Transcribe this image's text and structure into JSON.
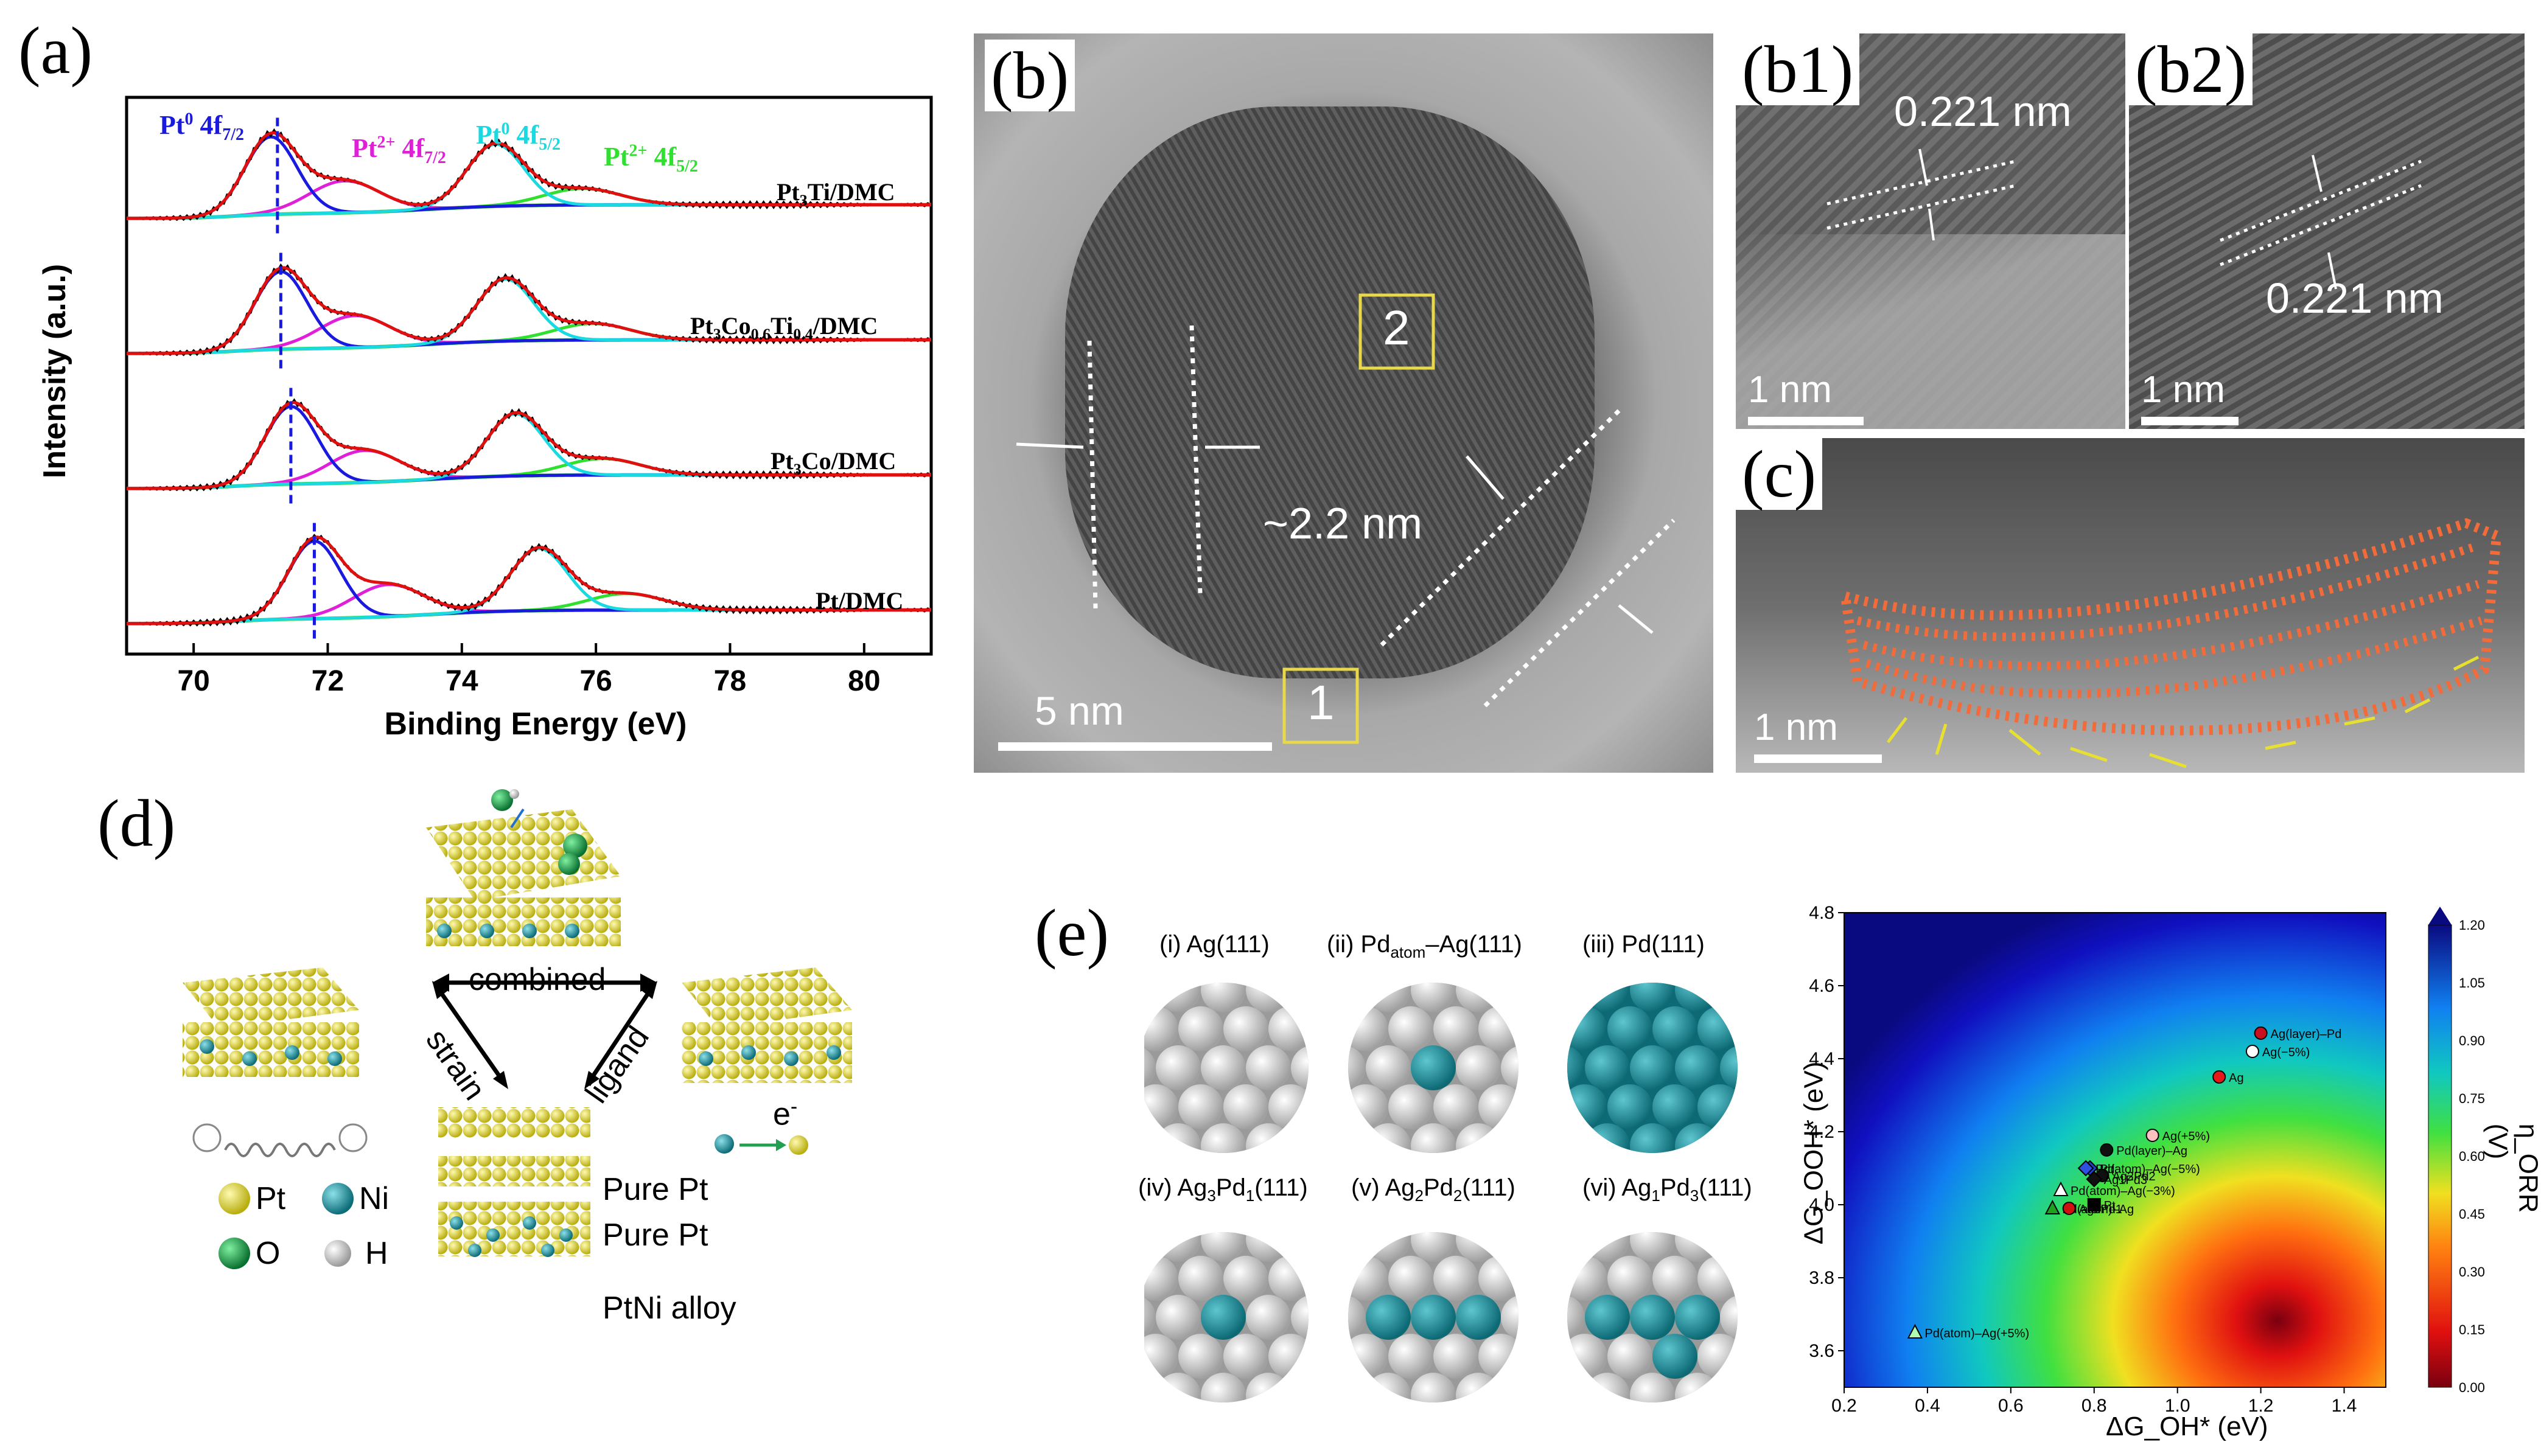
{
  "panel_labels": {
    "a": "(a)",
    "b": "(b)",
    "b1": "(b1)",
    "b2": "(b2)",
    "c": "(c)",
    "d": "(d)",
    "e": "(e)"
  },
  "panel_a": {
    "chart_data": {
      "type": "line",
      "title": "",
      "xlabel": "Binding Energy (eV)",
      "ylabel": "Intensity (a.u.)",
      "xlim": [
        69,
        81
      ],
      "x_ticks": [
        "70",
        "72",
        "74",
        "76",
        "78",
        "80"
      ],
      "x_reversed": false,
      "series": [
        {
          "name": "Pt3Ti/DMC",
          "baseline": 3,
          "peak_Pt0_72": 71.15,
          "peak_Pt0_52": 74.5,
          "dashed_line_x": 71.25
        },
        {
          "name": "Pt3Co0.6Ti0.4/DMC",
          "baseline": 2,
          "peak_Pt0_72": 71.3,
          "peak_Pt0_52": 74.65,
          "dashed_line_x": 71.3
        },
        {
          "name": "Pt3Co/DMC",
          "baseline": 1,
          "peak_Pt0_72": 71.45,
          "peak_Pt0_52": 74.8,
          "dashed_line_x": 71.45
        },
        {
          "name": "Pt/DMC",
          "baseline": 0,
          "peak_Pt0_72": 71.8,
          "peak_Pt0_52": 75.15,
          "dashed_line_x": 71.8
        }
      ],
      "peak_labels": [
        {
          "base": "Pt",
          "sup": "0",
          "rest": " 4f",
          "sub": "7/2",
          "color": "#1a1adf"
        },
        {
          "base": "Pt",
          "sup": "2+",
          "rest": " 4f",
          "sub": "7/2",
          "color": "#e020d8"
        },
        {
          "base": "Pt",
          "sup": "0",
          "rest": " 4f",
          "sub": "5/2",
          "color": "#1ad9e0"
        },
        {
          "base": "Pt",
          "sup": "2+",
          "rest": " 4f",
          "sub": "5/2",
          "color": "#30e030"
        }
      ],
      "series_labels": {
        "s1": {
          "a": "Pt",
          "b": "3",
          "c": "Ti/DMC"
        },
        "s2": {
          "a": "Pt",
          "b": "3",
          "c": "Co",
          "d": "0.6",
          "e": "Ti",
          "f": "0.4",
          "g": "/DMC"
        },
        "s3": {
          "a": "Pt",
          "b": "3",
          "c": "Co/DMC"
        },
        "s4": {
          "a": "Pt/DMC"
        }
      },
      "colors": {
        "raw": "#000000",
        "fit": "#e01010",
        "pt0": "#1a1adf",
        "pt2": "#e020d8",
        "pt0b": "#1ad9e0",
        "bg": "#30e030"
      }
    }
  },
  "panel_b": {
    "lattice": "~2.2 nm",
    "box1": "1",
    "box2": "2",
    "scale": "5 nm"
  },
  "panel_b1": {
    "spacing": "0.221 nm",
    "scale": "1 nm"
  },
  "panel_b2": {
    "spacing": "0.221 nm",
    "scale": "1 nm"
  },
  "panel_c": {
    "scale": "1 nm"
  },
  "panel_d": {
    "top_label": "combined",
    "left_label": "strain",
    "right_label": "ligand",
    "electron": "e",
    "electron_sup": "-",
    "stack_labels": [
      "Pure Pt",
      "Pure Pt",
      "PtNi alloy"
    ],
    "legend": [
      {
        "label": "Pt",
        "color": "#d8d020"
      },
      {
        "label": "Ni",
        "color": "#1a9aa6"
      },
      {
        "label": "O",
        "color": "#14a040"
      },
      {
        "label": "H",
        "color": "#e8e8e8"
      }
    ]
  },
  "panel_e": {
    "surfaces": [
      {
        "pre": "(i) Ag(111)",
        "sub": "",
        "post": ""
      },
      {
        "pre": "(ii) Pd",
        "sub": "atom",
        "post": "–Ag(111)"
      },
      {
        "pre": "(iii) Pd(111)",
        "sub": "",
        "post": ""
      },
      {
        "pre": "(iv) Ag",
        "sub": "3",
        "post": "Pd",
        "sub2": "1",
        "post2": "(111)"
      },
      {
        "pre": "(v) Ag",
        "sub": "2",
        "post": "Pd",
        "sub2": "2",
        "post2": "(111)"
      },
      {
        "pre": "(vi) Ag",
        "sub": "1",
        "post": "Pd",
        "sub2": "3",
        "post2": "(111)"
      }
    ],
    "chart_data": {
      "type": "heatmap",
      "xlabel": "ΔG_OH* (eV)",
      "ylabel": "ΔG_OOH* (eV)",
      "colorbar_label": "η_ORR (V)",
      "xlim": [
        0.2,
        1.5
      ],
      "ylim": [
        3.5,
        4.8
      ],
      "x_ticks": [
        "0.2",
        "0.4",
        "0.6",
        "0.8",
        "1.0",
        "1.2",
        "1.4"
      ],
      "y_ticks": [
        "3.6",
        "3.8",
        "4.0",
        "4.2",
        "4.4",
        "4.6",
        "4.8"
      ],
      "colorbar_ticks": [
        "0.00",
        "0.15",
        "0.30",
        "0.45",
        "0.60",
        "0.75",
        "0.90",
        "1.05",
        "1.20"
      ],
      "points": [
        {
          "label": "Ag(layer)–Pd",
          "x": 1.2,
          "y": 4.47,
          "color": "#c81020",
          "shape": "circle"
        },
        {
          "label": "Ag(−5%)",
          "x": 1.18,
          "y": 4.42,
          "color": "#ffffff",
          "shape": "circle"
        },
        {
          "label": "Ag",
          "x": 1.1,
          "y": 4.35,
          "color": "#e81818",
          "shape": "circle"
        },
        {
          "label": "Ag(+5%)",
          "x": 0.94,
          "y": 4.19,
          "color": "#ffc0c0",
          "shape": "circle"
        },
        {
          "label": "Pd(layer)–Ag",
          "x": 0.83,
          "y": 4.15,
          "color": "#101010",
          "shape": "circle"
        },
        {
          "label": "Pd",
          "x": 0.79,
          "y": 4.1,
          "color": "#2040d0",
          "shape": "diamond"
        },
        {
          "label": "Ag2Pd2",
          "x": 0.82,
          "y": 4.08,
          "color": "#101010",
          "shape": "circle"
        },
        {
          "label": "Ag1Pd3",
          "x": 0.8,
          "y": 4.07,
          "color": "#101010",
          "shape": "diamond"
        },
        {
          "label": "Pd(atom)–Ag(−5%)",
          "x": 0.78,
          "y": 4.1,
          "color": "#3050e0",
          "shape": "diamond"
        },
        {
          "label": "Pd(atom)–Ag(−3%)",
          "x": 0.72,
          "y": 4.04,
          "color": "#ffffff",
          "shape": "triangle"
        },
        {
          "label": "Pd(atom)–Ag",
          "x": 0.7,
          "y": 3.99,
          "color": "#20a020",
          "shape": "triangle"
        },
        {
          "label": "Ag3Pd1",
          "x": 0.74,
          "y": 3.99,
          "color": "#d01010",
          "shape": "circle"
        },
        {
          "label": "Pt",
          "x": 0.8,
          "y": 4.0,
          "color": "#000000",
          "shape": "square"
        },
        {
          "label": "Pd(atom)–Ag(+5%)",
          "x": 0.37,
          "y": 3.65,
          "color": "#b0ffb0",
          "shape": "triangle"
        }
      ]
    }
  }
}
